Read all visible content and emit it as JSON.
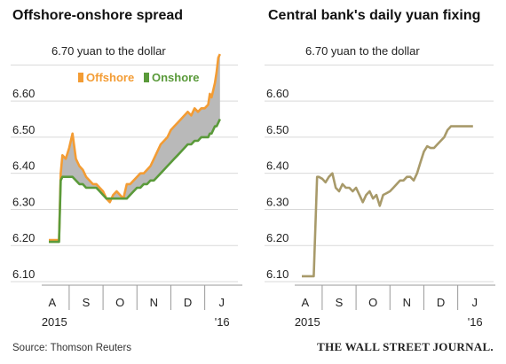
{
  "chart_data": [
    {
      "type": "area",
      "title": "Offshore-onshore spread",
      "ylabel": "6.70 yuan to the dollar",
      "ylim": [
        6.1,
        6.74
      ],
      "yticks": [
        "6.10",
        "6.20",
        "6.30",
        "6.40",
        "6.50",
        "6.60",
        "6.70"
      ],
      "x_months": [
        "A",
        "S",
        "O",
        "N",
        "D",
        "J"
      ],
      "x_years": [
        "2015",
        "'16"
      ],
      "legend": {
        "placement": "top-right"
      },
      "series": [
        {
          "name": "Offshore",
          "color": "#f39c34",
          "x": [
            0.0,
            0.2,
            0.3,
            0.35,
            0.4,
            0.5,
            0.6,
            0.7,
            0.8,
            0.9,
            1.0,
            1.1,
            1.2,
            1.3,
            1.4,
            1.5,
            1.6,
            1.7,
            1.8,
            1.9,
            2.0,
            2.1,
            2.2,
            2.3,
            2.4,
            2.5,
            2.6,
            2.7,
            2.8,
            2.9,
            3.0,
            3.1,
            3.2,
            3.3,
            3.4,
            3.5,
            3.6,
            3.7,
            3.8,
            3.9,
            4.0,
            4.1,
            4.2,
            4.3,
            4.4,
            4.5,
            4.6,
            4.7,
            4.75,
            4.8,
            4.85,
            4.9,
            4.95,
            5.0,
            5.05
          ],
          "values": [
            6.215,
            6.215,
            6.215,
            6.4,
            6.45,
            6.44,
            6.47,
            6.51,
            6.44,
            6.42,
            6.41,
            6.39,
            6.38,
            6.37,
            6.37,
            6.36,
            6.35,
            6.33,
            6.32,
            6.34,
            6.35,
            6.34,
            6.33,
            6.37,
            6.37,
            6.38,
            6.39,
            6.4,
            6.4,
            6.41,
            6.42,
            6.44,
            6.46,
            6.48,
            6.49,
            6.5,
            6.52,
            6.53,
            6.54,
            6.55,
            6.56,
            6.57,
            6.56,
            6.58,
            6.57,
            6.58,
            6.58,
            6.59,
            6.62,
            6.61,
            6.63,
            6.65,
            6.68,
            6.72,
            6.73
          ]
        },
        {
          "name": "Onshore",
          "color": "#5a9a3a",
          "x": [
            0.0,
            0.2,
            0.3,
            0.35,
            0.4,
            0.5,
            0.6,
            0.7,
            0.8,
            0.9,
            1.0,
            1.1,
            1.2,
            1.3,
            1.4,
            1.5,
            1.6,
            1.7,
            1.8,
            1.9,
            2.0,
            2.1,
            2.2,
            2.3,
            2.4,
            2.5,
            2.6,
            2.7,
            2.8,
            2.9,
            3.0,
            3.1,
            3.2,
            3.3,
            3.4,
            3.5,
            3.6,
            3.7,
            3.8,
            3.9,
            4.0,
            4.1,
            4.2,
            4.3,
            4.4,
            4.5,
            4.6,
            4.7,
            4.75,
            4.8,
            4.85,
            4.9,
            4.95,
            5.0,
            5.05
          ],
          "values": [
            6.21,
            6.21,
            6.21,
            6.38,
            6.39,
            6.39,
            6.39,
            6.39,
            6.38,
            6.37,
            6.37,
            6.36,
            6.36,
            6.36,
            6.36,
            6.35,
            6.34,
            6.33,
            6.33,
            6.33,
            6.33,
            6.33,
            6.33,
            6.33,
            6.34,
            6.35,
            6.36,
            6.36,
            6.37,
            6.37,
            6.38,
            6.38,
            6.39,
            6.4,
            6.41,
            6.42,
            6.43,
            6.44,
            6.45,
            6.46,
            6.47,
            6.48,
            6.48,
            6.49,
            6.49,
            6.5,
            6.5,
            6.5,
            6.51,
            6.51,
            6.52,
            6.53,
            6.53,
            6.54,
            6.55
          ]
        }
      ]
    },
    {
      "type": "line",
      "title": "Central bank's daily yuan fixing",
      "ylabel": "6.70 yuan to the dollar",
      "ylim": [
        6.1,
        6.74
      ],
      "yticks": [
        "6.10",
        "6.20",
        "6.30",
        "6.40",
        "6.50",
        "6.60",
        "6.70"
      ],
      "x_months": [
        "A",
        "S",
        "O",
        "N",
        "D",
        "J"
      ],
      "x_years": [
        "2015",
        "'16"
      ],
      "series": [
        {
          "name": "",
          "color": "#a89a6a",
          "x": [
            0.0,
            0.3,
            0.35,
            0.45,
            0.5,
            0.6,
            0.7,
            0.8,
            0.9,
            1.0,
            1.1,
            1.2,
            1.3,
            1.4,
            1.5,
            1.6,
            1.7,
            1.8,
            1.9,
            2.0,
            2.1,
            2.2,
            2.3,
            2.4,
            2.5,
            2.6,
            2.7,
            2.8,
            2.9,
            3.0,
            3.1,
            3.2,
            3.3,
            3.4,
            3.5,
            3.6,
            3.7,
            3.8,
            3.9,
            4.0,
            4.1,
            4.2,
            4.3,
            4.4,
            4.5,
            4.6,
            4.7,
            4.8,
            4.9,
            5.0,
            5.05
          ],
          "values": [
            6.115,
            6.115,
            6.115,
            6.39,
            6.39,
            6.385,
            6.375,
            6.39,
            6.4,
            6.36,
            6.35,
            6.37,
            6.36,
            6.36,
            6.35,
            6.36,
            6.34,
            6.32,
            6.34,
            6.35,
            6.33,
            6.34,
            6.31,
            6.34,
            6.345,
            6.35,
            6.36,
            6.37,
            6.38,
            6.38,
            6.39,
            6.39,
            6.38,
            6.4,
            6.43,
            6.46,
            6.475,
            6.47,
            6.47,
            6.48,
            6.49,
            6.5,
            6.52,
            6.53,
            6.53,
            6.53,
            6.53,
            6.53,
            6.53,
            6.53,
            6.53
          ]
        }
      ]
    }
  ],
  "source": "Source: Thomson Reuters",
  "brand": "THE WALL STREET JOURNAL."
}
